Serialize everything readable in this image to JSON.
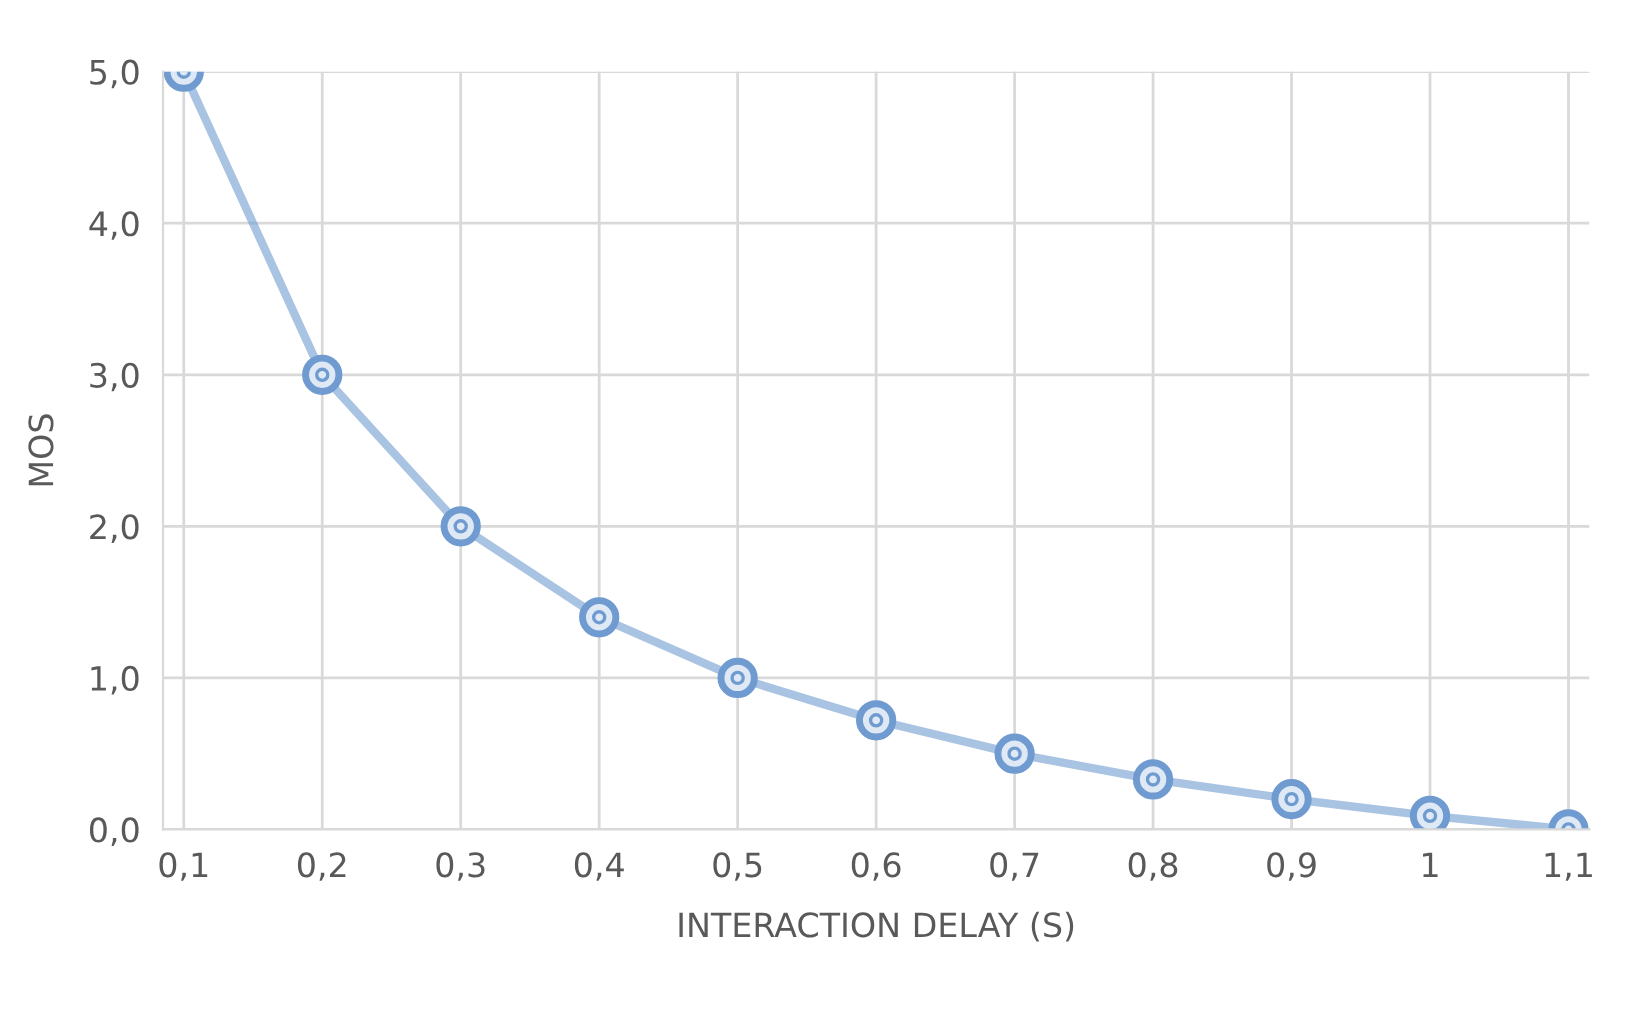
{
  "chart_data": {
    "type": "line",
    "xlabel": "INTERACTION DELAY (S)",
    "ylabel": "MOS",
    "categories": [
      "0,1",
      "0,2",
      "0,3",
      "0,4",
      "0,5",
      "0,6",
      "0,7",
      "0,8",
      "0,9",
      "1",
      "1,1"
    ],
    "series": [
      {
        "color": "#6f9bd1",
        "values": [
          5.0,
          3.0,
          2.0,
          1.4,
          1.0,
          0.72,
          0.5,
          0.33,
          0.2,
          0.09,
          0.0
        ]
      }
    ],
    "ylim": [
      0,
      5
    ],
    "yticks": [
      {
        "value": 0,
        "label": "0,0"
      },
      {
        "value": 1,
        "label": "1,0"
      },
      {
        "value": 2,
        "label": "2,0"
      },
      {
        "value": 3,
        "label": "3,0"
      },
      {
        "value": 4,
        "label": "4,0"
      },
      {
        "value": 5,
        "label": "5,0"
      }
    ],
    "grid": true,
    "marker": "circle",
    "line_style": "solid"
  }
}
